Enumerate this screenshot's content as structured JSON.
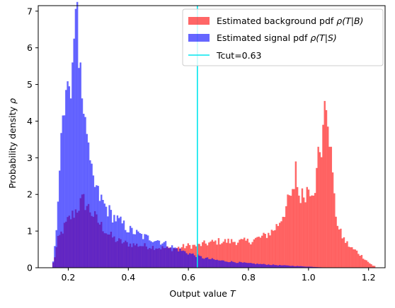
{
  "chart_data": {
    "type": "bar",
    "title": "",
    "xlabel": "Output value T",
    "xlabel_plain": "Output value ",
    "xlabel_var": "T",
    "ylabel": "Probability density ρ",
    "ylabel_plain": "Probability density ",
    "ylabel_var": "ρ",
    "xlim": [
      0.1,
      1.255
    ],
    "ylim": [
      0,
      7.15
    ],
    "xticks": [
      0.2,
      0.4,
      0.6,
      0.8,
      1.0,
      1.2
    ],
    "xtick_labels": [
      "0.2",
      "0.4",
      "0.6",
      "0.8",
      "1.0",
      "1.2"
    ],
    "yticks": [
      0,
      1,
      2,
      3,
      4,
      5,
      6,
      7
    ],
    "ytick_labels": [
      "0",
      "1",
      "2",
      "3",
      "4",
      "5",
      "6",
      "7"
    ],
    "grid": false,
    "legend_position": "top-right",
    "bin_width": 0.00535,
    "bin_start": 0.147,
    "colors": {
      "background": "#ff0000",
      "signal": "#0000ff",
      "tcut": "#00e5ee"
    },
    "bar_alpha": 0.6,
    "background_keypoints": {
      "x": [
        0.147,
        0.155,
        0.165,
        0.18,
        0.2,
        0.22,
        0.24,
        0.25,
        0.27,
        0.3,
        0.33,
        0.36,
        0.4,
        0.45,
        0.5,
        0.55,
        0.6,
        0.63,
        0.65,
        0.7,
        0.75,
        0.8,
        0.85,
        0.88,
        0.9,
        0.92,
        0.94,
        0.96,
        0.98,
        1.0,
        1.02,
        1.035,
        1.045,
        1.05,
        1.055,
        1.06,
        1.065,
        1.07,
        1.08,
        1.1,
        1.12,
        1.14,
        1.16,
        1.18,
        1.2,
        1.215
      ],
      "y": [
        0.05,
        0.3,
        0.75,
        1.0,
        1.3,
        1.5,
        1.75,
        1.85,
        1.6,
        1.25,
        0.95,
        0.75,
        0.65,
        0.6,
        0.55,
        0.52,
        0.6,
        0.6,
        0.65,
        0.72,
        0.72,
        0.72,
        0.85,
        1.0,
        1.2,
        1.55,
        1.95,
        2.0,
        1.95,
        2.2,
        2.2,
        2.9,
        3.2,
        4.1,
        3.6,
        3.0,
        2.95,
        2.6,
        2.1,
        1.05,
        0.75,
        0.55,
        0.45,
        0.3,
        0.15,
        0.05
      ],
      "spikes": [
        [
          0.957,
          2.9
        ],
        [
          0.961,
          2.2
        ],
        [
          1.033,
          3.3
        ],
        [
          1.047,
          3.9
        ],
        [
          1.052,
          4.55
        ],
        [
          1.057,
          4.3
        ],
        [
          1.062,
          3.85
        ],
        [
          1.069,
          3.3
        ],
        [
          1.077,
          3.3
        ],
        [
          1.082,
          2.6
        ]
      ]
    },
    "signal_keypoints": {
      "x": [
        0.147,
        0.15,
        0.155,
        0.16,
        0.165,
        0.17,
        0.18,
        0.19,
        0.2,
        0.21,
        0.22,
        0.23,
        0.24,
        0.25,
        0.26,
        0.28,
        0.3,
        0.32,
        0.35,
        0.38,
        0.4,
        0.45,
        0.5,
        0.55,
        0.6,
        0.65,
        0.7,
        0.8,
        0.9,
        1.0,
        1.05,
        1.1
      ],
      "y": [
        0.0,
        0.2,
        0.6,
        1.0,
        1.6,
        2.7,
        3.6,
        4.2,
        4.7,
        5.4,
        6.2,
        6.4,
        5.5,
        4.3,
        3.4,
        2.4,
        2.0,
        1.7,
        1.4,
        1.2,
        1.05,
        0.85,
        0.75,
        0.55,
        0.4,
        0.27,
        0.2,
        0.12,
        0.07,
        0.03,
        0.01,
        0.0
      ],
      "spikes": [
        [
          0.195,
          4.85
        ],
        [
          0.205,
          4.95
        ],
        [
          0.213,
          5.6
        ],
        [
          0.219,
          6.25
        ],
        [
          0.222,
          6.55
        ],
        [
          0.225,
          6.75
        ],
        [
          0.228,
          6.15
        ],
        [
          0.232,
          6.3
        ],
        [
          0.236,
          5.45
        ],
        [
          0.243,
          5.6
        ],
        [
          0.25,
          4.2
        ],
        [
          0.262,
          3.65
        ],
        [
          0.296,
          2.25
        ],
        [
          0.315,
          1.85
        ]
      ]
    },
    "tcut": 0.63,
    "series": [
      {
        "name": "Estimated background pdf ρ(T|B)",
        "name_plain": "Estimated background pdf ",
        "name_var": "ρ(T|B)"
      },
      {
        "name": "Estimated signal pdf ρ(T|S)",
        "name_plain": "Estimated signal pdf ",
        "name_var": "ρ(T|S)"
      },
      {
        "name": "Tcut=0.63",
        "name_plain": "Tcut=0.63",
        "name_var": ""
      }
    ]
  }
}
